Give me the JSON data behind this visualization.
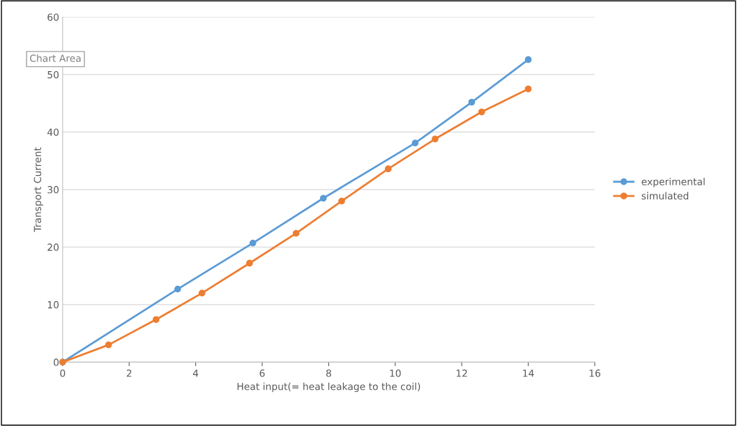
{
  "chart_data": {
    "type": "line",
    "xlabel": "Heat input(= heat leakage to the coil)",
    "ylabel": "Transport Current",
    "xlim": [
      0,
      16
    ],
    "xticks": [
      0,
      2,
      4,
      6,
      8,
      10,
      12,
      14,
      16
    ],
    "ylim": [
      0,
      60
    ],
    "yticks": [
      0,
      10,
      20,
      30,
      40,
      50,
      60
    ],
    "grid": "y",
    "legend": "right",
    "marker": "circle",
    "line_style": "solid",
    "annotations": [
      "Chart Area"
    ],
    "series": [
      {
        "name": "experimental",
        "color": "#5b9bd5",
        "x": [
          0,
          3.46,
          5.72,
          7.84,
          10.6,
          12.3,
          14.0
        ],
        "values": [
          0,
          12.7,
          20.7,
          28.5,
          38.1,
          45.2,
          52.6
        ]
      },
      {
        "name": "simulated",
        "color": "#ed7d31",
        "x": [
          0,
          1.38,
          2.81,
          4.19,
          5.62,
          7.02,
          8.39,
          9.79,
          11.2,
          12.6,
          14.0
        ],
        "values": [
          0,
          3.0,
          7.4,
          12.0,
          17.2,
          22.4,
          28.0,
          33.6,
          38.8,
          43.5,
          47.5
        ]
      }
    ]
  }
}
